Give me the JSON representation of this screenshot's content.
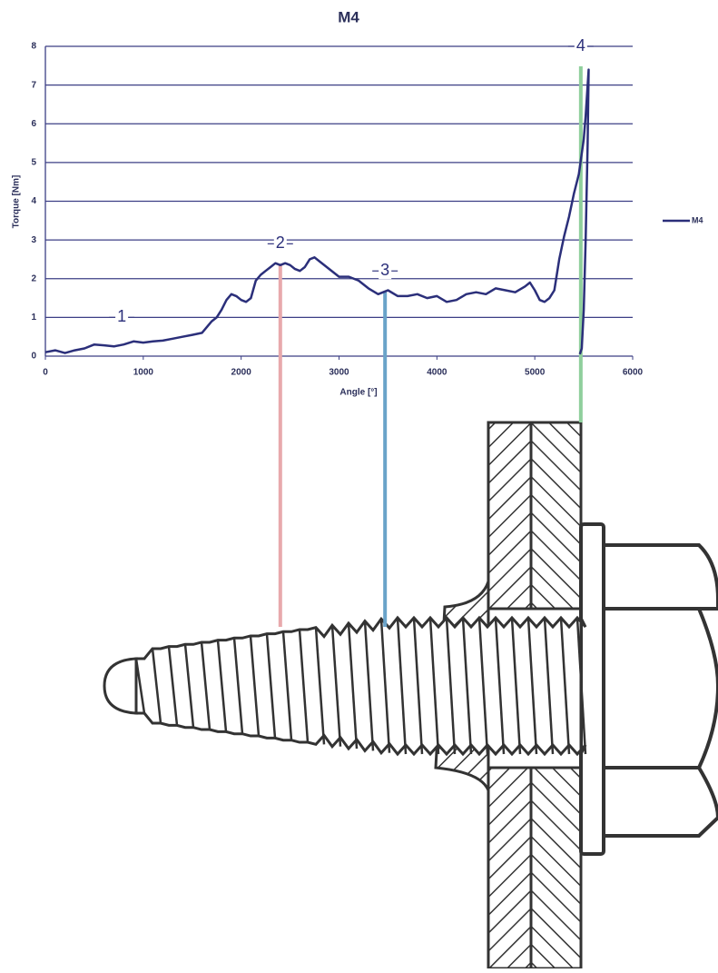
{
  "chart_data": {
    "type": "line",
    "title": "M4",
    "x_label": "Angle [°]",
    "y_label": "Torque [Nm]",
    "xlim": [
      0,
      6000
    ],
    "xticks": [
      0,
      1000,
      2000,
      3000,
      4000,
      5000,
      6000
    ],
    "ylim": [
      0,
      8
    ],
    "yticks": [
      0,
      1,
      2,
      3,
      4,
      5,
      6,
      7,
      8
    ],
    "grid": true,
    "legend": "right",
    "series": [
      {
        "name": "M4",
        "color": "#2b2f7a",
        "x": [
          0,
          100,
          200,
          300,
          400,
          500,
          600,
          700,
          800,
          900,
          1000,
          1100,
          1200,
          1300,
          1400,
          1500,
          1600,
          1700,
          1750,
          1800,
          1850,
          1900,
          1950,
          2000,
          2050,
          2100,
          2150,
          2200,
          2250,
          2300,
          2350,
          2400,
          2450,
          2500,
          2550,
          2600,
          2650,
          2700,
          2750,
          2800,
          2900,
          3000,
          3100,
          3200,
          3300,
          3400,
          3450,
          3500,
          3600,
          3700,
          3800,
          3900,
          4000,
          4100,
          4200,
          4300,
          4400,
          4500,
          4600,
          4700,
          4800,
          4900,
          4950,
          5000,
          5050,
          5100,
          5150,
          5200,
          5250,
          5300,
          5350,
          5400,
          5450,
          5500,
          5520,
          5550,
          5540,
          5520,
          5500,
          5480,
          5460
        ],
        "values": [
          0.1,
          0.15,
          0.08,
          0.15,
          0.2,
          0.3,
          0.28,
          0.25,
          0.3,
          0.38,
          0.35,
          0.38,
          0.4,
          0.45,
          0.5,
          0.55,
          0.6,
          0.9,
          1.0,
          1.2,
          1.45,
          1.6,
          1.55,
          1.45,
          1.4,
          1.5,
          1.95,
          2.1,
          2.2,
          2.3,
          2.4,
          2.35,
          2.4,
          2.35,
          2.25,
          2.2,
          2.3,
          2.5,
          2.55,
          2.45,
          2.25,
          2.05,
          2.05,
          1.95,
          1.75,
          1.6,
          1.65,
          1.7,
          1.55,
          1.55,
          1.6,
          1.5,
          1.55,
          1.4,
          1.45,
          1.6,
          1.65,
          1.6,
          1.75,
          1.7,
          1.65,
          1.8,
          1.9,
          1.7,
          1.45,
          1.4,
          1.5,
          1.7,
          2.5,
          3.1,
          3.6,
          4.2,
          4.7,
          5.6,
          6.2,
          7.4,
          5.5,
          3.0,
          1.2,
          0.2,
          0.05
        ]
      }
    ],
    "annotations": [
      {
        "text": "1",
        "x": 780,
        "y": 1.0
      },
      {
        "text": "2",
        "x": 2400,
        "y": 2.9,
        "line_color": "#e8a9ac"
      },
      {
        "text": "3",
        "x": 3470,
        "y": 2.2,
        "line_color": "#6aa3c9"
      },
      {
        "text": "4",
        "x": 5470,
        "y": 8.0,
        "line_color": "#8fcf9c"
      }
    ]
  }
}
